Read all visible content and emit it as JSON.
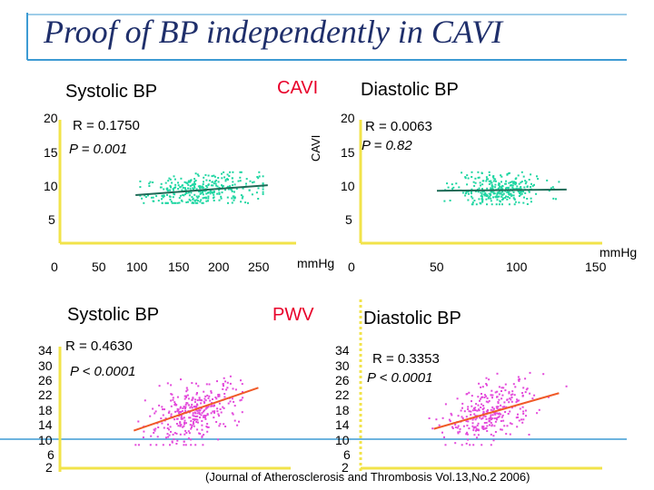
{
  "slide": {
    "title": "Proof of BP independently in CAVI",
    "source": "(Journal of Atherosclerosis and Thrombosis Vol.13,No.2 2006)",
    "colors": {
      "accent_line": "#3d9bd3",
      "axis": "#f2e34a",
      "cavi_points": "#1fd6a2",
      "pwv_points": "#e34adb",
      "trend_cavi": "#1e6b57",
      "trend_pwv": "#f05a28",
      "row_label": "#e8002a",
      "title": "#1f2f6b"
    }
  },
  "row_labels": {
    "cavi": "CAVI",
    "pwv": "PWV",
    "cavi_axis": "CAVI"
  },
  "chart_data": [
    {
      "type": "scatter",
      "title": "Systolic BP",
      "ylabel": "CAVI",
      "xlabel": "",
      "unit": "",
      "xlim": [
        0,
        250
      ],
      "ylim": [
        0,
        20
      ],
      "x_ticks": [
        "0",
        "50",
        "100",
        "150",
        "200",
        "250"
      ],
      "y_ticks": [
        "20",
        "15",
        "10",
        "5"
      ],
      "stat_r": "R = 0.1750",
      "stat_p": "P = 0.001",
      "point_color": "#1fd6a2",
      "trend": {
        "x": [
          80,
          220
        ],
        "y": [
          7.8,
          9.4
        ]
      },
      "cluster": {
        "x_center": 150,
        "x_spread": 30,
        "x_range": [
          85,
          215
        ],
        "y_center": 8.6,
        "y_spread": 1.3,
        "y_range": [
          6.5,
          11.5
        ],
        "n": 320,
        "slope": 0.011,
        "x_ref": 150
      }
    },
    {
      "type": "scatter",
      "title": "Diastolic BP",
      "ylabel": "",
      "xlabel": "",
      "unit": "mmHg",
      "xlim": [
        0,
        150
      ],
      "ylim": [
        0,
        20
      ],
      "x_ticks": [
        "0",
        "50",
        "100",
        "150"
      ],
      "y_ticks": [
        "20",
        "15",
        "10",
        "5"
      ],
      "stat_r": "R = 0.0063",
      "stat_p": "P = 0.82",
      "point_color": "#1fd6a2",
      "trend": {
        "x": [
          50,
          135
        ],
        "y": [
          8.5,
          8.7
        ]
      },
      "cluster": {
        "x_center": 90,
        "x_spread": 14,
        "x_range": [
          50,
          130
        ],
        "y_center": 8.6,
        "y_spread": 1.3,
        "y_range": [
          6.3,
          11.5
        ],
        "n": 300,
        "slope": 0.002,
        "x_ref": 90
      }
    },
    {
      "type": "scatter",
      "title": "Systolic BP",
      "ylabel": "",
      "xlabel": "",
      "unit": "mmHg",
      "xlim": [
        0,
        250
      ],
      "ylim": [
        2,
        34
      ],
      "x_ticks": [],
      "y_ticks": [
        "34",
        "30",
        "26",
        "22",
        "18",
        "14",
        "10",
        "6",
        "2"
      ],
      "stat_r": "R = 0.4630",
      "stat_p": "P < 0.0001",
      "point_color": "#e34adb",
      "trend": {
        "x": [
          80,
          215
        ],
        "y": [
          11.5,
          23.5
        ]
      },
      "cluster": {
        "x_center": 145,
        "x_spread": 25,
        "x_range": [
          82,
          215
        ],
        "y_center": 16.5,
        "y_spread": 3.8,
        "y_range": [
          7.5,
          30
        ],
        "n": 330,
        "slope": 0.089,
        "x_ref": 145
      }
    },
    {
      "type": "scatter",
      "title": "Diastolic BP",
      "ylabel": "",
      "xlabel": "",
      "unit": "",
      "xlim": [
        0,
        150
      ],
      "ylim": [
        2,
        34
      ],
      "x_ticks": [],
      "y_ticks": [
        "34",
        "30",
        "26",
        "22",
        "18",
        "14",
        "10",
        "6",
        "2"
      ],
      "stat_r": "R = 0.3353",
      "stat_p": "P < 0.0001",
      "point_color": "#e34adb",
      "trend": {
        "x": [
          48,
          130
        ],
        "y": [
          12.0,
          22.0
        ]
      },
      "cluster": {
        "x_center": 85,
        "x_spread": 14,
        "x_range": [
          45,
          135
        ],
        "y_center": 16.5,
        "y_spread": 3.8,
        "y_range": [
          7.5,
          30
        ],
        "n": 300,
        "slope": 0.122,
        "x_ref": 85
      }
    }
  ]
}
